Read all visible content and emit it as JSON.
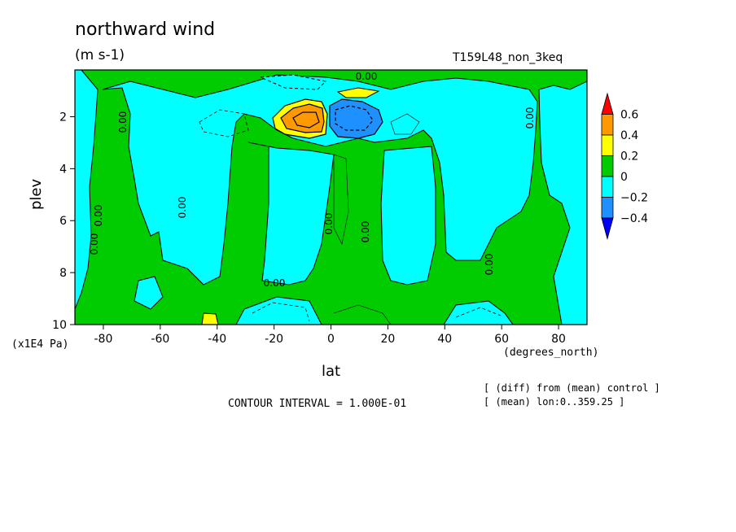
{
  "chart_data": {
    "type": "heatmap",
    "title": "northward wind",
    "units": "(m s-1)",
    "run_name": "T159L48_non_3keq",
    "xlabel": "lat",
    "xunits": "(degrees_north)",
    "ylabel": "plev",
    "yscale_label": "(x1E4 Pa)",
    "xlim": [
      -90,
      90
    ],
    "ylim": [
      10,
      0.2
    ],
    "x_ticks": [
      -80,
      -60,
      -40,
      -20,
      0,
      20,
      40,
      60,
      80
    ],
    "y_ticks": [
      2,
      4,
      6,
      8,
      10
    ],
    "contour_interval_text": "CONTOUR INTERVAL = 1.000E-01",
    "notes": [
      "[ (diff) from (mean) control ]",
      "[ (mean) lon:0..359.25 ]"
    ],
    "colorbar": {
      "levels": [
        "0.6",
        "0.4",
        "0.2",
        "0",
        "−0.2",
        "−0.4"
      ],
      "colors": [
        "#ff0000",
        "#ff9900",
        "#ffff00",
        "#00cc00",
        "#00ffff",
        "#1e90ff",
        "#0000ff"
      ]
    },
    "contour_labels": [
      "0.00",
      "0.00",
      "0.00",
      "0.00",
      "0.00",
      "0.00",
      "0.00",
      "0.00",
      "0.00",
      "0.00"
    ],
    "features": [
      {
        "name": "positive maximum",
        "lat_range": [
          -20,
          -3
        ],
        "plev_range": [
          1.2,
          2.8
        ],
        "max_value": 0.5
      },
      {
        "name": "negative minimum",
        "lat_range": [
          2,
          15
        ],
        "plev_range": [
          1.2,
          2.8
        ],
        "min_value": -0.4
      }
    ]
  }
}
